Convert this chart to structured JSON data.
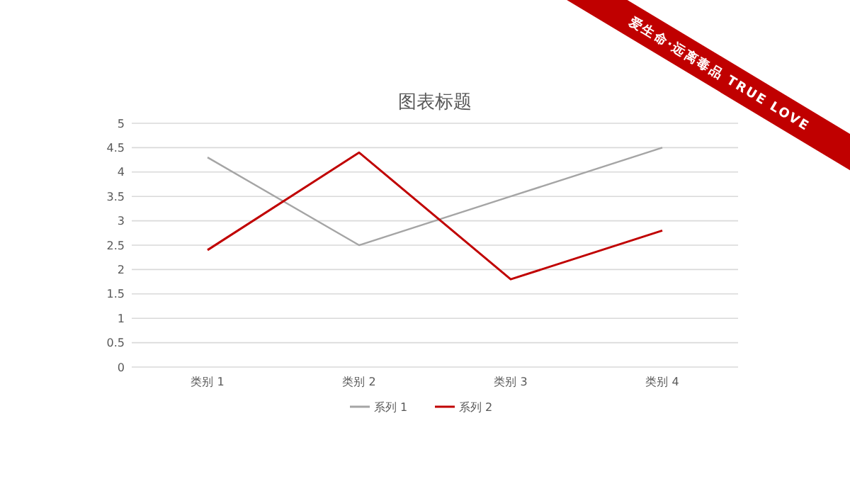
{
  "chart_data": {
    "type": "line",
    "title": "图表标题",
    "categories": [
      "类别 1",
      "类别 2",
      "类别 3",
      "类别 4"
    ],
    "series": [
      {
        "name": "系列 1",
        "color": "#a5a5a5",
        "values": [
          4.3,
          2.5,
          3.5,
          4.5
        ]
      },
      {
        "name": "系列 2",
        "color": "#c00000",
        "values": [
          2.4,
          4.4,
          1.8,
          2.8
        ]
      }
    ],
    "ylim": [
      0,
      5
    ],
    "yticks": [
      0,
      0.5,
      1,
      1.5,
      2,
      2.5,
      3,
      3.5,
      4,
      4.5,
      5
    ],
    "grid": "y",
    "legend": "bottom",
    "marker": "none",
    "line_style": "solid",
    "annotations": [
      "爱生命·远离毒品 TRUE LOVE"
    ]
  }
}
